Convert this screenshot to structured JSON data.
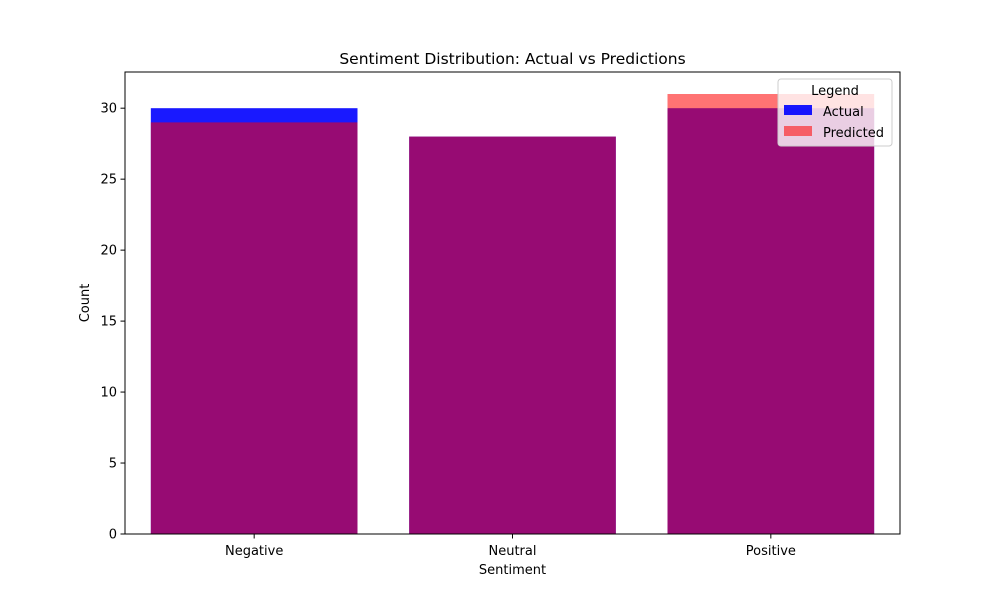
{
  "chart_data": {
    "type": "bar",
    "title": "Sentiment Distribution: Actual vs Predictions",
    "xlabel": "Sentiment",
    "ylabel": "Count",
    "categories": [
      "Negative",
      "Neutral",
      "Positive"
    ],
    "ylim": [
      0,
      32.55
    ],
    "yticks": [
      0,
      5,
      10,
      15,
      20,
      25,
      30
    ],
    "grid": false,
    "overlay": true,
    "series": [
      {
        "name": "Actual",
        "values": [
          30,
          28,
          30
        ],
        "color": "#0000ff",
        "opacity": 0.9
      },
      {
        "name": "Predicted",
        "values": [
          29,
          28,
          31
        ],
        "color": "#ff0000",
        "opacity": 0.55
      }
    ],
    "legend": {
      "title": "Legend",
      "position": "upper right"
    }
  }
}
